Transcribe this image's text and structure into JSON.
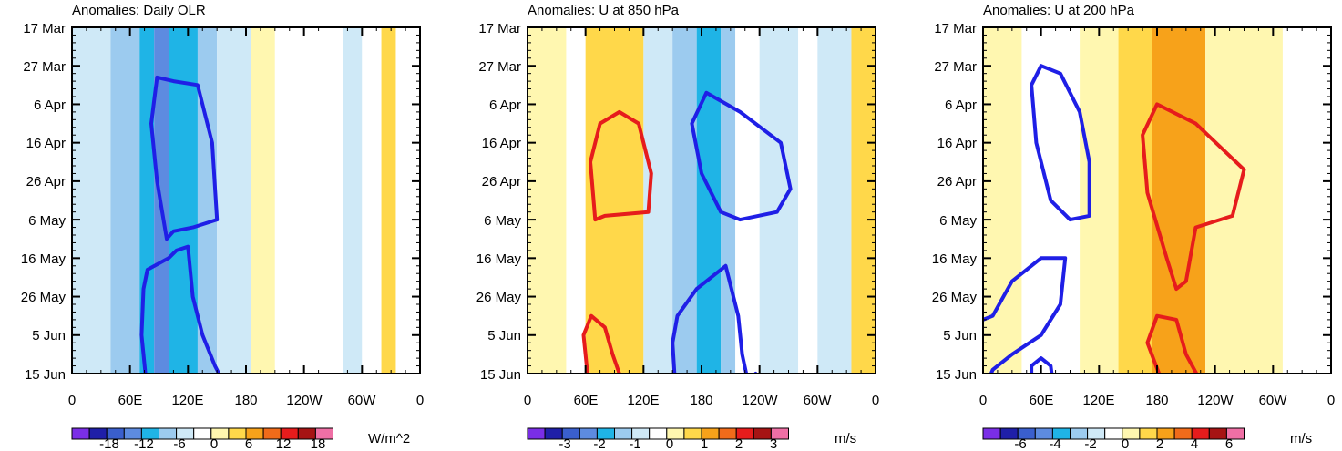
{
  "chart_data": [
    {
      "type": "heatmap",
      "title": "Anomalies: Daily OLR",
      "units": "W/m^2",
      "x_tick_labels": [
        "0",
        "60E",
        "120E",
        "180",
        "120W",
        "60W",
        "0"
      ],
      "x_ticks_lon": [
        0,
        60,
        120,
        180,
        240,
        300,
        360
      ],
      "y_tick_labels": [
        "17 Mar",
        "27 Mar",
        "6 Apr",
        "16 Apr",
        "26 Apr",
        "6 May",
        "16 May",
        "26 May",
        "5 Jun",
        "15 Jun"
      ],
      "y_ticks_day": [
        0,
        10,
        20,
        30,
        40,
        50,
        60,
        70,
        80,
        90
      ],
      "colorbar_labels": [
        "-18",
        "-12",
        "-6",
        "0",
        "6",
        "12",
        "18"
      ],
      "colorbar_levels": [
        -21,
        -18,
        -15,
        -12,
        -9,
        -6,
        -3,
        0,
        3,
        6,
        9,
        12,
        15,
        18,
        21
      ],
      "field": [
        {
          "lon": [
            0,
            40
          ],
          "value": -3
        },
        {
          "lon": [
            40,
            70
          ],
          "value": -6
        },
        {
          "lon": [
            70,
            85
          ],
          "value": -9
        },
        {
          "lon": [
            85,
            100
          ],
          "value": -12
        },
        {
          "lon": [
            100,
            130
          ],
          "value": -9
        },
        {
          "lon": [
            130,
            150
          ],
          "value": -6
        },
        {
          "lon": [
            150,
            185
          ],
          "value": -3
        },
        {
          "lon": [
            185,
            210
          ],
          "value": 4
        },
        {
          "lon": [
            210,
            280
          ],
          "value": 2
        },
        {
          "lon": [
            280,
            300
          ],
          "value": -2
        },
        {
          "lon": [
            300,
            320
          ],
          "value": 2
        },
        {
          "lon": [
            320,
            335
          ],
          "value": 8
        },
        {
          "lon": [
            335,
            360
          ],
          "value": 2
        }
      ],
      "contours": [
        {
          "color": "blue",
          "points": [
            [
              150,
              50
            ],
            [
              145,
              30
            ],
            [
              130,
              15
            ],
            [
              105,
              14
            ],
            [
              88,
              13
            ],
            [
              82,
              25
            ],
            [
              88,
              40
            ],
            [
              98,
              55
            ],
            [
              105,
              53
            ],
            [
              125,
              52
            ],
            [
              150,
              50
            ]
          ]
        },
        {
          "color": "blue",
          "points": [
            [
              76,
              90
            ],
            [
              72,
              80
            ],
            [
              74,
              68
            ],
            [
              78,
              63
            ],
            [
              100,
              60
            ],
            [
              108,
              58
            ],
            [
              120,
              57
            ],
            [
              125,
              70
            ],
            [
              135,
              80
            ],
            [
              148,
              88
            ],
            [
              152,
              90
            ]
          ]
        }
      ]
    },
    {
      "type": "heatmap",
      "title": "Anomalies: U at 850 hPa",
      "units": "m/s",
      "x_tick_labels": [
        "0",
        "60E",
        "120E",
        "180",
        "120W",
        "60W",
        "0"
      ],
      "x_ticks_lon": [
        0,
        60,
        120,
        180,
        240,
        300,
        360
      ],
      "y_tick_labels": [
        "17 Mar",
        "27 Mar",
        "6 Apr",
        "16 Apr",
        "26 Apr",
        "6 May",
        "16 May",
        "26 May",
        "5 Jun",
        "15 Jun"
      ],
      "y_ticks_day": [
        0,
        10,
        20,
        30,
        40,
        50,
        60,
        70,
        80,
        90
      ],
      "colorbar_labels": [
        "-3",
        "-2",
        "-1",
        "0",
        "1",
        "2",
        "3"
      ],
      "colorbar_levels": [
        -3.5,
        -3,
        -2.5,
        -2,
        -1.5,
        -1,
        -0.5,
        0,
        0.5,
        1,
        1.5,
        2,
        2.5,
        3,
        3.5
      ],
      "field": [
        {
          "lon": [
            0,
            40
          ],
          "value": 0.7
        },
        {
          "lon": [
            40,
            60
          ],
          "value": 0.3
        },
        {
          "lon": [
            60,
            120
          ],
          "value": 1.2
        },
        {
          "lon": [
            120,
            150
          ],
          "value": -0.3
        },
        {
          "lon": [
            150,
            175
          ],
          "value": -0.8
        },
        {
          "lon": [
            175,
            200
          ],
          "value": -1.3
        },
        {
          "lon": [
            200,
            215
          ],
          "value": -0.7
        },
        {
          "lon": [
            215,
            240
          ],
          "value": 0.3
        },
        {
          "lon": [
            240,
            280
          ],
          "value": -0.3
        },
        {
          "lon": [
            280,
            300
          ],
          "value": 0.3
        },
        {
          "lon": [
            300,
            335
          ],
          "value": -0.2
        },
        {
          "lon": [
            335,
            360
          ],
          "value": 1.2
        }
      ],
      "contours": [
        {
          "color": "red",
          "points": [
            [
              70,
              50
            ],
            [
              80,
              49
            ],
            [
              125,
              48
            ],
            [
              128,
              38
            ],
            [
              115,
              25
            ],
            [
              95,
              22
            ],
            [
              75,
              25
            ],
            [
              65,
              35
            ],
            [
              70,
              50
            ]
          ]
        },
        {
          "color": "red",
          "points": [
            [
              62,
              90
            ],
            [
              58,
              80
            ],
            [
              66,
              75
            ],
            [
              80,
              78
            ],
            [
              88,
              85
            ],
            [
              95,
              90
            ]
          ]
        },
        {
          "color": "blue",
          "points": [
            [
              185,
              17
            ],
            [
              220,
              22
            ],
            [
              262,
              30
            ],
            [
              272,
              42
            ],
            [
              258,
              48
            ],
            [
              220,
              50
            ],
            [
              200,
              48
            ],
            [
              180,
              38
            ],
            [
              170,
              25
            ],
            [
              185,
              17
            ]
          ]
        },
        {
          "color": "blue",
          "points": [
            [
              152,
              90
            ],
            [
              150,
              82
            ],
            [
              155,
              75
            ],
            [
              175,
              68
            ],
            [
              205,
              62
            ],
            [
              218,
              75
            ],
            [
              222,
              85
            ],
            [
              228,
              92
            ],
            [
              236,
              90
            ]
          ]
        }
      ]
    },
    {
      "type": "heatmap",
      "title": "Anomalies: U at 200 hPa",
      "units": "m/s",
      "x_tick_labels": [
        "0",
        "60E",
        "120E",
        "180",
        "120W",
        "60W",
        "0"
      ],
      "x_ticks_lon": [
        0,
        60,
        120,
        180,
        240,
        300,
        360
      ],
      "y_tick_labels": [
        "17 Mar",
        "27 Mar",
        "6 Apr",
        "16 Apr",
        "26 Apr",
        "6 May",
        "16 May",
        "26 May",
        "5 Jun",
        "15 Jun"
      ],
      "y_ticks_day": [
        0,
        10,
        20,
        30,
        40,
        50,
        60,
        70,
        80,
        90
      ],
      "colorbar_labels": [
        "-6",
        "-4",
        "-2",
        "0",
        "2",
        "4",
        "6"
      ],
      "colorbar_levels": [
        -7,
        -6,
        -5,
        -4,
        -3,
        -2,
        -1,
        0,
        1,
        2,
        3,
        4,
        5,
        6,
        7
      ],
      "field": [
        {
          "lon": [
            0,
            40
          ],
          "value": 1.3
        },
        {
          "lon": [
            40,
            100
          ],
          "value": 0.4
        },
        {
          "lon": [
            100,
            140
          ],
          "value": 1.2
        },
        {
          "lon": [
            140,
            175
          ],
          "value": 2.4
        },
        {
          "lon": [
            175,
            230
          ],
          "value": 3.3
        },
        {
          "lon": [
            230,
            270
          ],
          "value": 1.4
        },
        {
          "lon": [
            270,
            310
          ],
          "value": 1.2
        },
        {
          "lon": [
            310,
            360
          ],
          "value": 0.8
        }
      ],
      "contours": [
        {
          "color": "blue",
          "points": [
            [
              60,
              10
            ],
            [
              80,
              12
            ],
            [
              100,
              22
            ],
            [
              110,
              35
            ],
            [
              110,
              49
            ],
            [
              90,
              50
            ],
            [
              70,
              45
            ],
            [
              55,
              30
            ],
            [
              50,
              15
            ],
            [
              60,
              10
            ]
          ]
        },
        {
          "color": "blue",
          "points": [
            [
              0,
              76
            ],
            [
              10,
              75
            ],
            [
              30,
              66
            ],
            [
              60,
              60
            ],
            [
              85,
              60
            ],
            [
              80,
              72
            ],
            [
              60,
              80
            ],
            [
              30,
              85
            ],
            [
              10,
              89
            ],
            [
              5,
              92
            ]
          ]
        },
        {
          "color": "blue",
          "points": [
            [
              50,
              92
            ],
            [
              50,
              88
            ],
            [
              60,
              86
            ],
            [
              70,
              88
            ],
            [
              72,
              92
            ]
          ]
        },
        {
          "color": "red",
          "points": [
            [
              180,
              20
            ],
            [
              220,
              25
            ],
            [
              270,
              37
            ],
            [
              258,
              49
            ],
            [
              220,
              52
            ],
            [
              210,
              66
            ],
            [
              200,
              68
            ],
            [
              190,
              60
            ],
            [
              170,
              43
            ],
            [
              165,
              28
            ],
            [
              180,
              20
            ]
          ]
        },
        {
          "color": "red",
          "points": [
            [
              185,
              92
            ],
            [
              170,
              82
            ],
            [
              180,
              75
            ],
            [
              200,
              76
            ],
            [
              210,
              85
            ],
            [
              225,
              92
            ]
          ]
        }
      ]
    }
  ]
}
